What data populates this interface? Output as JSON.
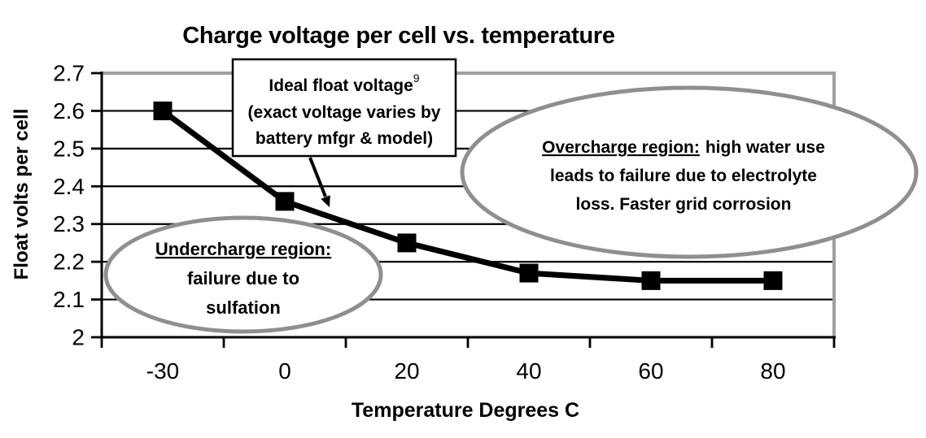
{
  "title": "Charge voltage per cell vs. temperature",
  "y_axis": {
    "title": "Float volts per cell",
    "ticks": [
      "2.7",
      "2.6",
      "2.5",
      "2.4",
      "2.3",
      "2.2",
      "2.1",
      "2"
    ]
  },
  "x_axis": {
    "title": "Temperature Degrees C",
    "ticks": [
      "-30",
      "0",
      "20",
      "40",
      "60",
      "80"
    ]
  },
  "callouts": {
    "ideal_box": {
      "line1": "Ideal float voltage",
      "superscript": "9",
      "line2": "(exact voltage varies by",
      "line3": "battery mfgr & model)"
    },
    "undercharge": {
      "line1": "Undercharge region:",
      "line2": "failure due to",
      "line3": "sulfation"
    },
    "overcharge": {
      "line1_underlined": "Overcharge region:",
      "line1_rest": "high water use",
      "line2": "leads to failure due to electrolyte",
      "line3": "loss. Faster grid corrosion"
    }
  },
  "colors": {
    "line": "#000000",
    "grid": "#000000",
    "ellipse_stroke": "#8f8f8f",
    "plot_border": "#a0a0a0"
  },
  "chart_data": {
    "type": "line",
    "title": "Charge voltage per cell vs. temperature",
    "xlabel": "Temperature Degrees C",
    "ylabel": "Float volts per cell",
    "x_axis_type": "category",
    "x": [
      -30,
      0,
      20,
      40,
      60,
      80
    ],
    "y": [
      2.6,
      2.36,
      2.25,
      2.17,
      2.15,
      2.15
    ],
    "ylim": [
      2.0,
      2.7
    ],
    "ytick_step": 0.1,
    "grid": "horizontal",
    "marker": "square",
    "legend": "none",
    "annotations": [
      "Ideal float voltage9 (exact voltage varies by battery mfgr & model)",
      "Undercharge region: failure due to sulfation",
      "Overcharge region: high water use leads to failure due to electrolyte loss. Faster grid corrosion"
    ]
  }
}
